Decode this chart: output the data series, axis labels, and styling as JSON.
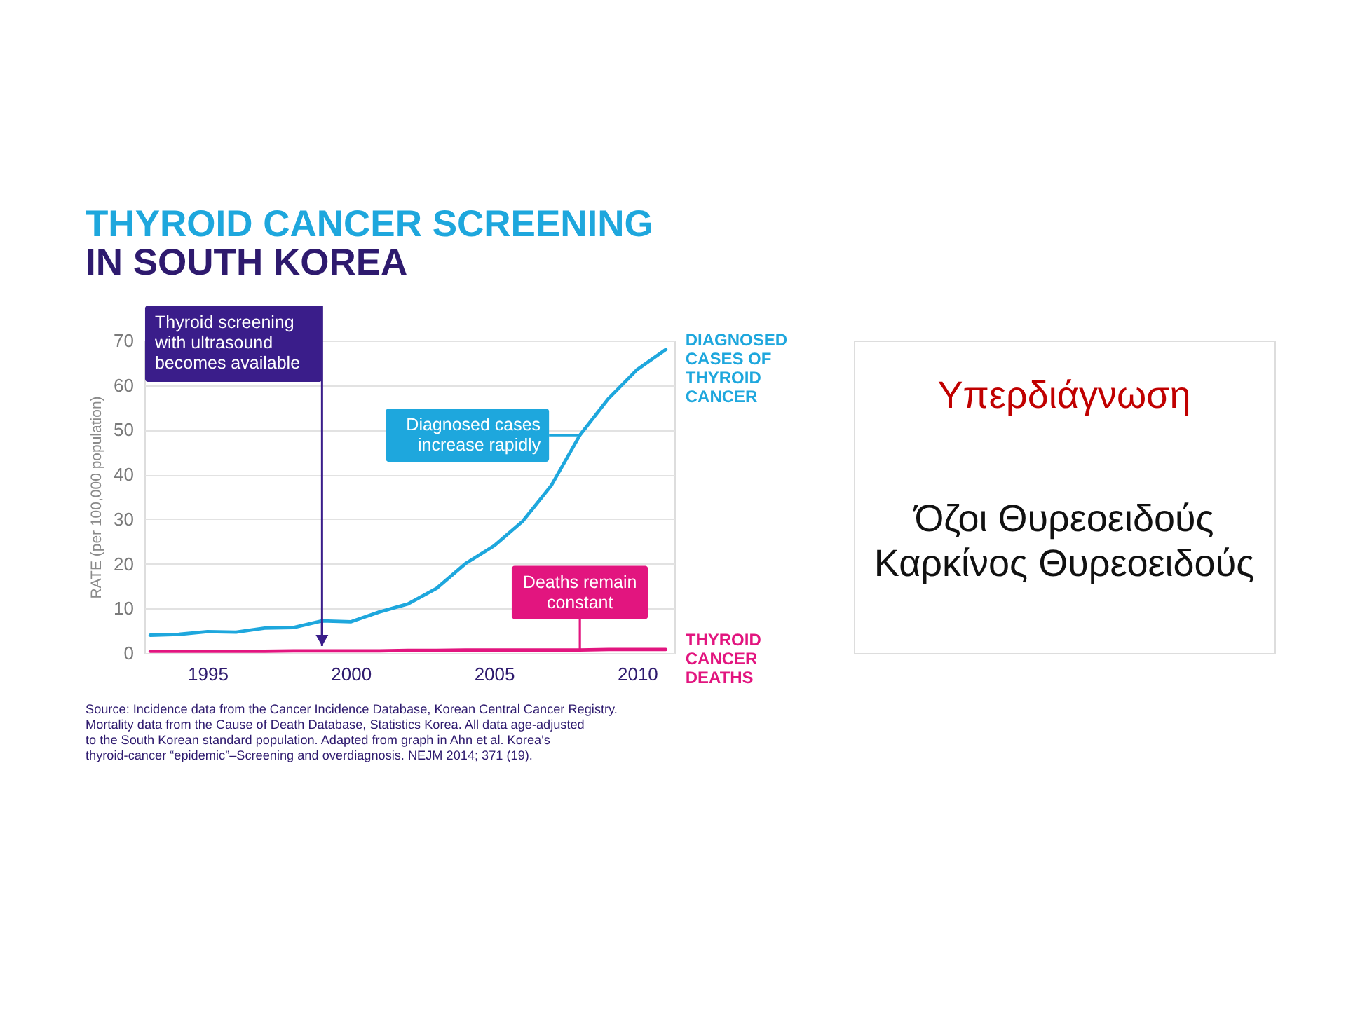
{
  "chart_data": [
    {
      "type": "line",
      "title": "THYROID CANCER SCREENING",
      "subtitle": "IN SOUTH KOREA",
      "ylabel": "RATE (per 100,000 population)",
      "x": [
        1993,
        1994,
        1995,
        1996,
        1997,
        1998,
        1999,
        2000,
        2001,
        2002,
        2003,
        2004,
        2005,
        2006,
        2007,
        2008,
        2009,
        2010,
        2011
      ],
      "series": [
        {
          "name": "DIAGNOSED CASES OF THYROID CANCER",
          "color": "#1ea7dd",
          "values": [
            4.0,
            4.2,
            4.8,
            4.7,
            5.6,
            5.7,
            7.2,
            7.0,
            9.2,
            11.0,
            14.5,
            20.0,
            24.0,
            29.5,
            37.5,
            48.8,
            57.0,
            63.5,
            68.0
          ]
        },
        {
          "name": "THYROID CANCER DEATHS",
          "color": "#e2157f",
          "values": [
            0.4,
            0.4,
            0.4,
            0.4,
            0.4,
            0.5,
            0.5,
            0.5,
            0.5,
            0.6,
            0.6,
            0.7,
            0.7,
            0.7,
            0.7,
            0.7,
            0.8,
            0.8,
            0.8
          ]
        }
      ],
      "xlim": [
        1992.8,
        2011.3
      ],
      "xticks": [
        1995,
        2000,
        2005,
        2010
      ],
      "ylim": [
        0,
        70
      ],
      "yticks": [
        0,
        10,
        20,
        30,
        40,
        50,
        60,
        70
      ],
      "grid": "y",
      "ref_lines": [
        {
          "axis": "x",
          "value": 1999,
          "label": "Thyroid screening with ultrasound becomes available",
          "color": "#3a1d8a"
        }
      ],
      "annotations": [
        {
          "text": "Diagnosed cases increase rapidly",
          "x": 2008,
          "y": 48.8
        },
        {
          "text": "Deaths remain constant",
          "x": 2008,
          "y": 0.7
        },
        "Source: Incidence data from the Cancer Incidence Database, Korean Central Cancer Registry. Mortality data from the Cause of Death Database, Statistics Korea. All data age-adjusted to the South Korean standard population. Adapted from graph in Ahn et al. Korea's thyroid-cancer “epidemic”–Screening and overdiagnosis. NEJM 2014; 371 (19)."
      ]
    },
    {
      "type": "other",
      "title": "Υπερδιάγνωση",
      "annotations": [
        "Όζοι Θυρεοειδούς",
        "Καρκίνος Θυρεοειδούς"
      ]
    }
  ]
}
